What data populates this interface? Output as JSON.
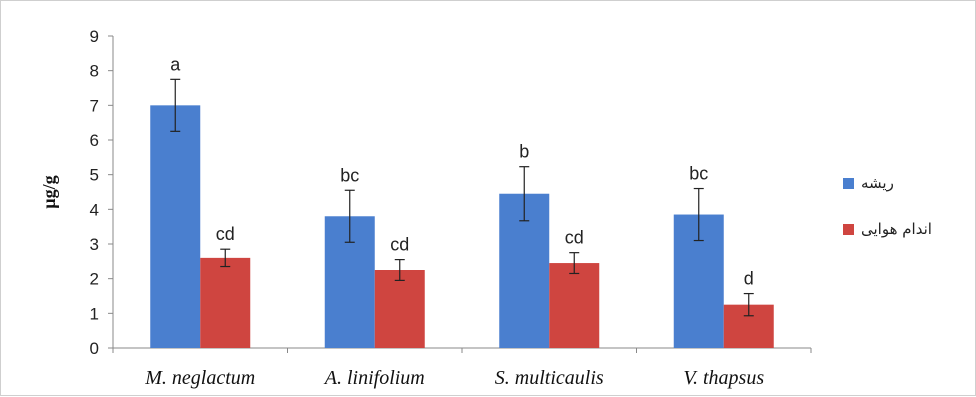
{
  "chart_data": {
    "type": "bar",
    "title": "",
    "xlabel": "",
    "ylabel": "µg/g",
    "ylim": [
      0,
      9
    ],
    "yticks": [
      0,
      1,
      2,
      3,
      4,
      5,
      6,
      7,
      8,
      9
    ],
    "grid": false,
    "legend_position": "right",
    "categories": [
      "M. neglactum",
      "A. linifolium",
      "S. multicaulis",
      "V. thapsus"
    ],
    "series": [
      {
        "name": "ریشه",
        "color": "#4a7fcf",
        "values": [
          7.0,
          3.8,
          4.45,
          3.85
        ],
        "errors": [
          0.75,
          0.75,
          0.78,
          0.75
        ],
        "labels": [
          "a",
          "bc",
          "b",
          "bc"
        ]
      },
      {
        "name": "اندام هوایی",
        "color": "#cf4540",
        "values": [
          2.6,
          2.25,
          2.45,
          1.25
        ],
        "errors": [
          0.25,
          0.3,
          0.3,
          0.32
        ],
        "labels": [
          "cd",
          "cd",
          "cd",
          "d"
        ]
      }
    ]
  }
}
